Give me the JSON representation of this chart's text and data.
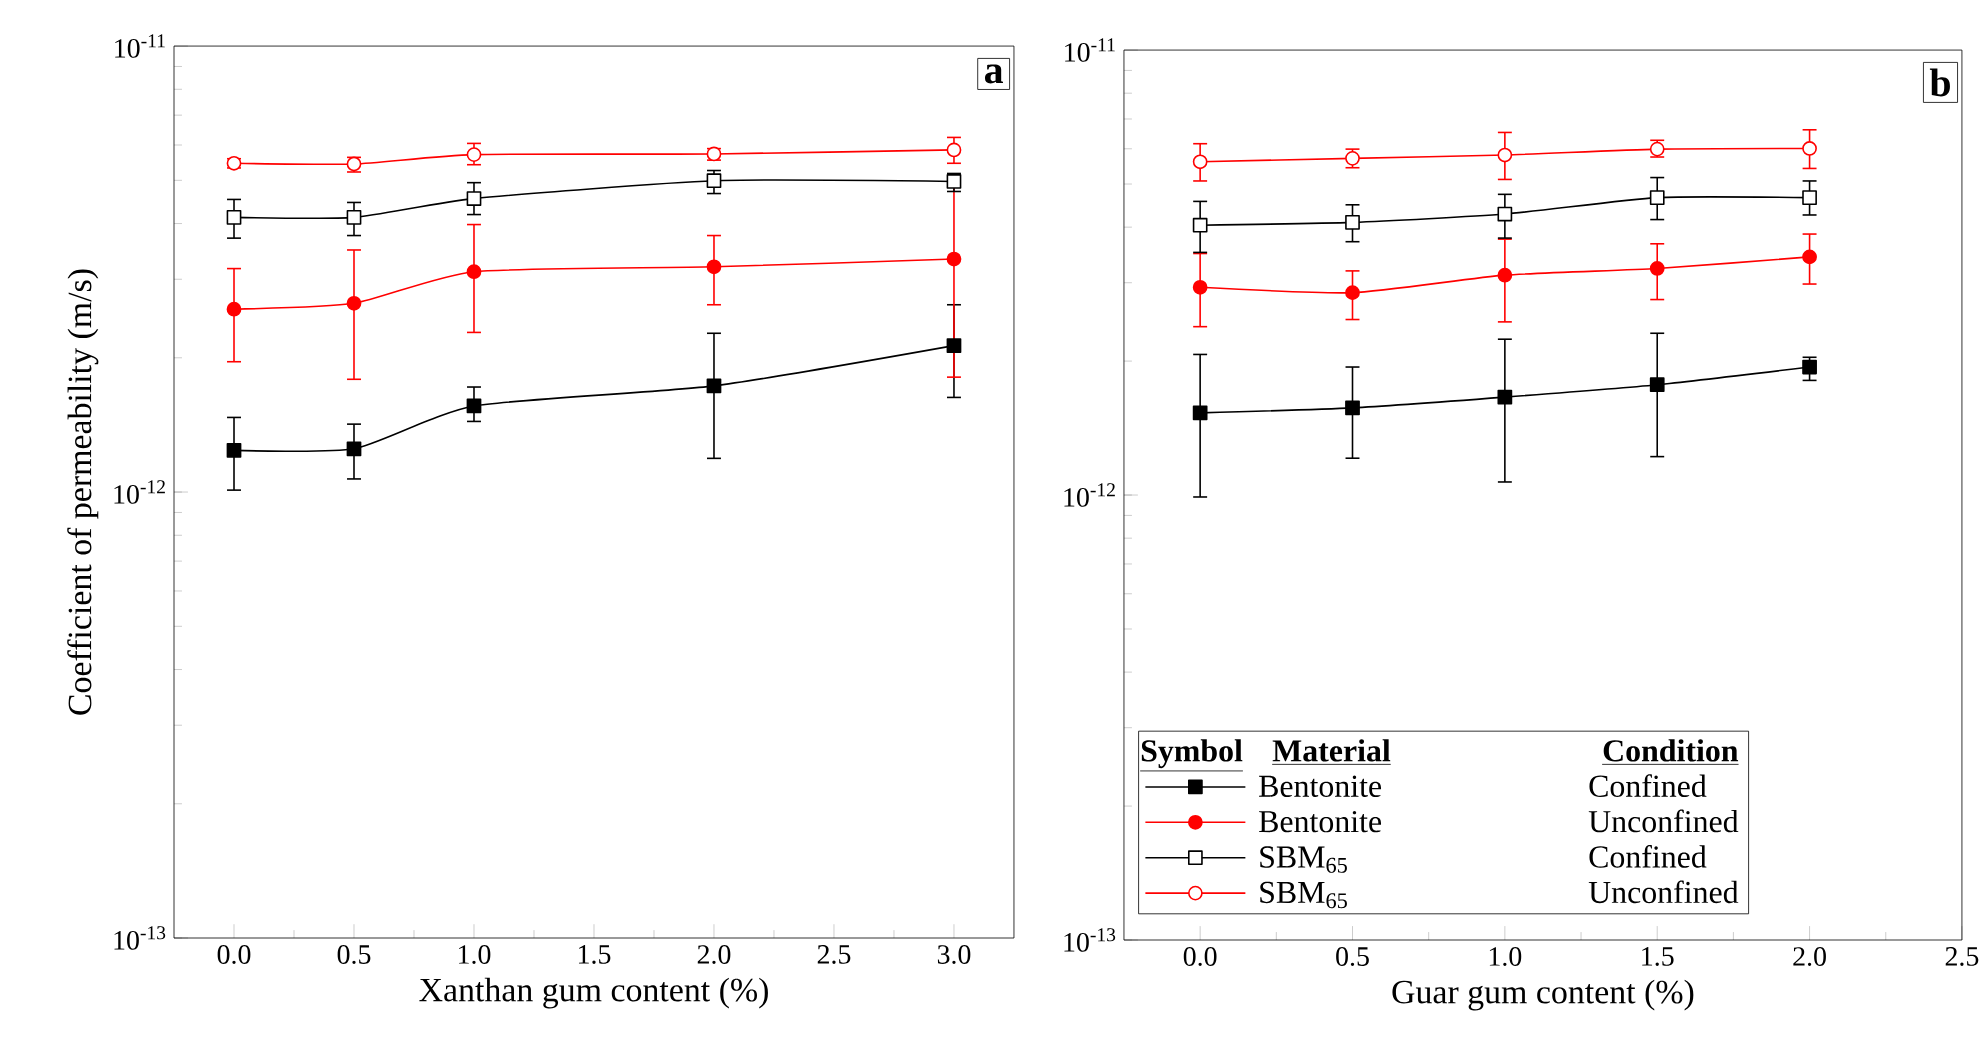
{
  "chart_data": [
    {
      "type": "line",
      "xlabel": "Xanthan gum content (%)",
      "ylabel": "Coefficient of permeability (m/s)",
      "x": [
        0,
        0.5,
        1,
        2,
        3
      ],
      "xlim": [
        -0.25,
        3.25
      ],
      "xticks": [
        {
          "value": 0,
          "label": "0.0"
        },
        {
          "value": 0.5,
          "label": "0.5"
        },
        {
          "value": 1,
          "label": "1.0"
        },
        {
          "value": 1.5,
          "label": "1.5"
        },
        {
          "value": 2,
          "label": "2.0"
        },
        {
          "value": 2.5,
          "label": "2.5"
        },
        {
          "value": 3,
          "label": "3.0"
        }
      ],
      "ylim": [
        1e-13,
        1e-11
      ],
      "yticks": [
        {
          "value": 1e-13,
          "label": "10$^{-13}$"
        },
        {
          "value": 1e-12,
          "label": "10$^{-12}$"
        },
        {
          "value": 1e-11,
          "label": "10$^{-11}$"
        }
      ],
      "log": true,
      "line_style": "solid",
      "annotations": [
        "a"
      ],
      "series": [
        {
          "color": "#000000",
          "marker": "square",
          "values": [
            1.24e-12,
            1.25e-12,
            1.56e-12,
            1.73e-12,
            2.13e-12
          ],
          "errors": [
            [
              1.01e-12,
              1.47e-12
            ],
            [
              1.07e-12,
              1.42e-12
            ],
            [
              1.44e-12,
              1.72e-12
            ],
            [
              1.19e-12,
              2.27e-12
            ],
            [
              1.63e-12,
              2.63e-12
            ]
          ]
        },
        {
          "color": "#ff0000",
          "marker": "circle",
          "values": [
            2.57e-12,
            2.65e-12,
            3.12e-12,
            3.2e-12,
            3.33e-12
          ],
          "errors": [
            [
              1.96e-12,
              3.17e-12
            ],
            [
              1.79e-12,
              3.49e-12
            ],
            [
              2.28e-12,
              3.98e-12
            ],
            [
              2.63e-12,
              3.76e-12
            ],
            [
              1.81e-12,
              4.84e-12
            ]
          ]
        },
        {
          "color": "#000000",
          "marker": "square_open",
          "values": [
            4.13e-12,
            4.13e-12,
            4.55e-12,
            4.99e-12,
            4.97e-12
          ],
          "errors": [
            [
              3.71e-12,
              4.53e-12
            ],
            [
              3.76e-12,
              4.46e-12
            ],
            [
              4.19e-12,
              4.94e-12
            ],
            [
              4.67e-12,
              5.26e-12
            ],
            [
              4.72e-12,
              5.18e-12
            ]
          ]
        },
        {
          "color": "#ff0000",
          "marker": "circle_open",
          "values": [
            5.46e-12,
            5.44e-12,
            5.71e-12,
            5.73e-12,
            5.85e-12
          ],
          "errors": [
            [
              5.33e-12,
              5.59e-12
            ],
            [
              5.22e-12,
              5.63e-12
            ],
            [
              5.42e-12,
              6.05e-12
            ],
            [
              5.55e-12,
              5.89e-12
            ],
            [
              5.46e-12,
              6.24e-12
            ]
          ]
        }
      ]
    },
    {
      "type": "line",
      "xlabel": "Guar gum content (%)",
      "x": [
        0,
        0.5,
        1,
        1.5,
        2
      ],
      "xlim": [
        -0.25,
        2.5
      ],
      "xticks": [
        {
          "value": 0,
          "label": "0.0"
        },
        {
          "value": 0.5,
          "label": "0.5"
        },
        {
          "value": 1,
          "label": "1.0"
        },
        {
          "value": 1.5,
          "label": "1.5"
        },
        {
          "value": 2,
          "label": "2.0"
        },
        {
          "value": 2.5,
          "label": "2.5"
        }
      ],
      "ylim": [
        1e-13,
        1e-11
      ],
      "yticks": [
        {
          "value": 1e-13,
          "label": "10$^{-13}$"
        },
        {
          "value": 1e-12,
          "label": "10$^{-12}$"
        },
        {
          "value": 1e-11,
          "label": "10$^{-11}$"
        }
      ],
      "log": true,
      "line_style": "solid",
      "legend": "bottom",
      "annotations": [
        "b",
        "Symbol",
        "Material",
        "Condition",
        "Confined",
        "Unconfined",
        "Confined",
        "Unconfined"
      ],
      "series": [
        {
          "name": "Bentonite",
          "color": "#000000",
          "marker": "square",
          "values": [
            1.53e-12,
            1.57e-12,
            1.66e-12,
            1.77e-12,
            1.94e-12
          ],
          "errors": [
            [
              9.9e-13,
              2.07e-12
            ],
            [
              1.21e-12,
              1.94e-12
            ],
            [
              1.07e-12,
              2.24e-12
            ],
            [
              1.22e-12,
              2.31e-12
            ],
            [
              1.81e-12,
              2.04e-12
            ]
          ]
        },
        {
          "name": "Bentonite",
          "color": "#ff0000",
          "marker": "circle",
          "values": [
            2.93e-12,
            2.85e-12,
            3.12e-12,
            3.23e-12,
            3.43e-12
          ],
          "errors": [
            [
              2.39e-12,
              3.49e-12
            ],
            [
              2.48e-12,
              3.19e-12
            ],
            [
              2.45e-12,
              3.76e-12
            ],
            [
              2.75e-12,
              3.67e-12
            ],
            [
              2.98e-12,
              3.86e-12
            ]
          ]
        },
        {
          "name": "SBM$_{65}$",
          "color": "#000000",
          "marker": "square_open",
          "values": [
            4.04e-12,
            4.1e-12,
            4.28e-12,
            4.66e-12,
            4.66e-12
          ],
          "errors": [
            [
              3.51e-12,
              4.57e-12
            ],
            [
              3.71e-12,
              4.49e-12
            ],
            [
              3.78e-12,
              4.74e-12
            ],
            [
              4.16e-12,
              5.17e-12
            ],
            [
              4.26e-12,
              5.08e-12
            ]
          ]
        },
        {
          "name": "SBM$_{65}$",
          "color": "#ff0000",
          "marker": "circle_open",
          "values": [
            5.61e-12,
            5.71e-12,
            5.81e-12,
            5.99e-12,
            6.01e-12
          ],
          "errors": [
            [
              5.08e-12,
              6.16e-12
            ],
            [
              5.44e-12,
              5.99e-12
            ],
            [
              5.12e-12,
              6.53e-12
            ],
            [
              5.75e-12,
              6.27e-12
            ],
            [
              5.42e-12,
              6.62e-12
            ]
          ]
        }
      ]
    }
  ]
}
